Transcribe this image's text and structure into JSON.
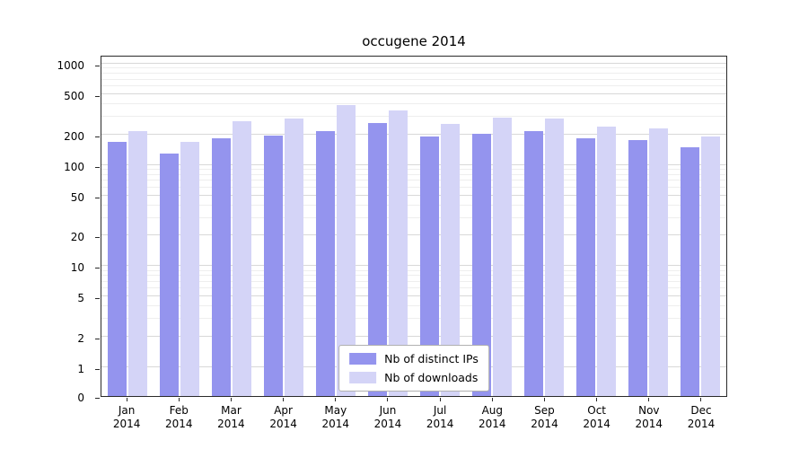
{
  "chart_data": {
    "type": "bar",
    "title": "occugene 2014",
    "year": "2014",
    "categories": [
      "Jan",
      "Feb",
      "Mar",
      "Apr",
      "May",
      "Jun",
      "Jul",
      "Aug",
      "Sep",
      "Oct",
      "Nov",
      "Dec"
    ],
    "series": [
      {
        "name": "Nb of distinct IPs",
        "color": "#9494ee",
        "values": [
          170,
          130,
          185,
          195,
          215,
          260,
          190,
          205,
          215,
          185,
          175,
          150
        ]
      },
      {
        "name": "Nb of downloads",
        "color": "#d4d4f7",
        "values": [
          215,
          170,
          270,
          285,
          390,
          345,
          255,
          295,
          290,
          240,
          230,
          190
        ]
      }
    ],
    "yscale": "symlog",
    "yticks": [
      1000,
      500,
      200,
      100,
      50,
      20,
      10,
      5,
      2,
      1,
      0
    ],
    "ylim": [
      0,
      1200
    ],
    "grid": true,
    "legend_position": "lower center",
    "xlabel": "",
    "ylabel": ""
  }
}
